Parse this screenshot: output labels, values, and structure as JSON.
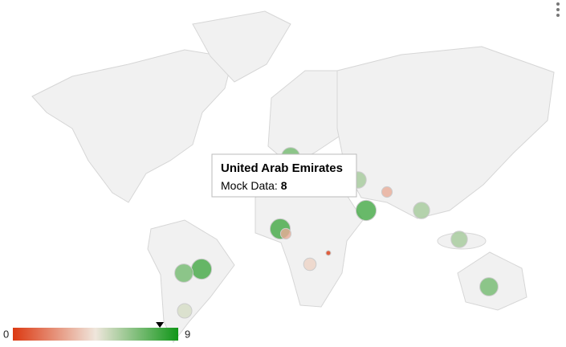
{
  "map": {
    "colorAxis": {
      "min": 0,
      "max": 9,
      "colors": [
        "#dc3912",
        "#efe6dc",
        "#109618"
      ]
    },
    "markers": [
      7,
      6,
      3,
      6,
      8,
      3,
      0,
      4,
      6,
      8,
      7,
      5,
      7,
      8
    ],
    "tooltip": {
      "title": "United Arab Emirates",
      "label": "Mock Data:",
      "value": 8
    }
  }
}
